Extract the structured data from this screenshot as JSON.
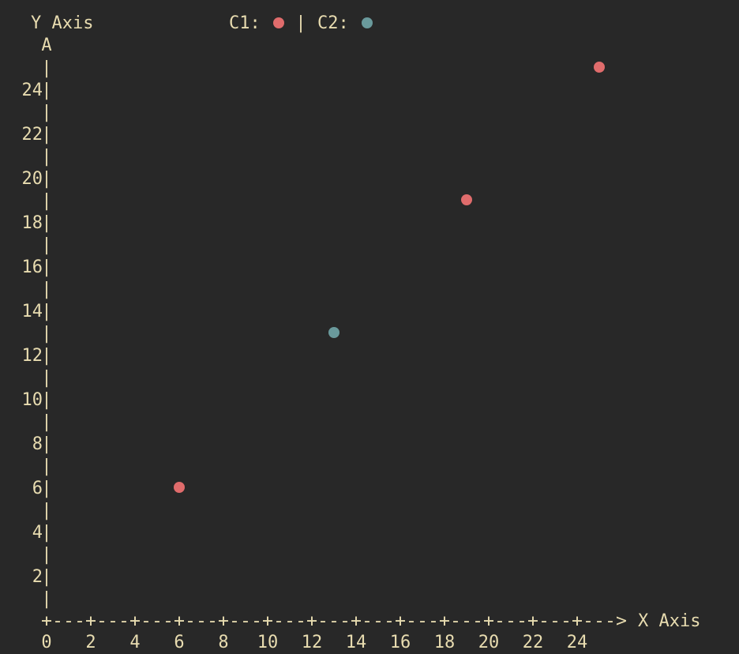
{
  "chart_data": {
    "type": "scatter",
    "ylabel": "Y Axis",
    "xlabel": "X Axis",
    "y_axis_arrow": "A",
    "x_axis_arrow": "--->",
    "legend": {
      "placement": "top",
      "separator": "|",
      "entries": [
        {
          "label": "C1:",
          "color": "#e06c6c"
        },
        {
          "label": "C2:",
          "color": "#6a9a9c"
        }
      ]
    },
    "xlim": [
      0,
      25
    ],
    "ylim": [
      0,
      25
    ],
    "x_ticks": [
      "0",
      "2",
      "4",
      "6",
      "8",
      "10",
      "12",
      "14",
      "16",
      "18",
      "20",
      "22",
      "24"
    ],
    "y_ticks": [
      "2",
      "4",
      "6",
      "8",
      "10",
      "12",
      "14",
      "16",
      "18",
      "20",
      "22",
      "24"
    ],
    "series": [
      {
        "color": "#e06c6c",
        "points": [
          {
            "x": 6,
            "y": 6
          },
          {
            "x": 19,
            "y": 19
          },
          {
            "x": 25,
            "y": 25
          }
        ]
      },
      {
        "color": "#6a9a9c",
        "points": [
          {
            "x": 13,
            "y": 13
          }
        ]
      }
    ],
    "grid": false
  }
}
